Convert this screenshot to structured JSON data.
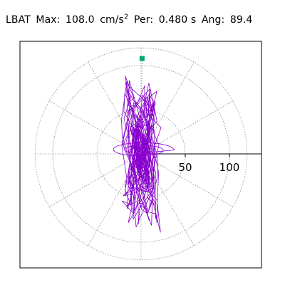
{
  "title": {
    "station": "LBAT",
    "max_label": "Max:",
    "max_value": "108.0",
    "max_unit": "cm/s",
    "max_unit_exp": "2",
    "per_label": "Per:",
    "per_value": "0.480 s",
    "ang_label": "Ang:",
    "ang_value": "89.4"
  },
  "chart_data": {
    "type": "polar-trace",
    "station": "LBAT",
    "max_amplitude": 108.0,
    "amplitude_unit": "cm/s²",
    "period_s": 0.48,
    "angle_deg": 89.4,
    "radial_ticks": [
      {
        "value": 50,
        "label": "50"
      },
      {
        "value": 100,
        "label": "100"
      }
    ],
    "rings": [
      50,
      100,
      120
    ],
    "spokes_deg": [
      0,
      30,
      60,
      90,
      120,
      150,
      180,
      210,
      240,
      270,
      300,
      330
    ],
    "grid": true,
    "colors": {
      "trace": "#8800cc",
      "peak_marker": "#00a878",
      "grid": "#888888",
      "axis": "#000000"
    }
  }
}
